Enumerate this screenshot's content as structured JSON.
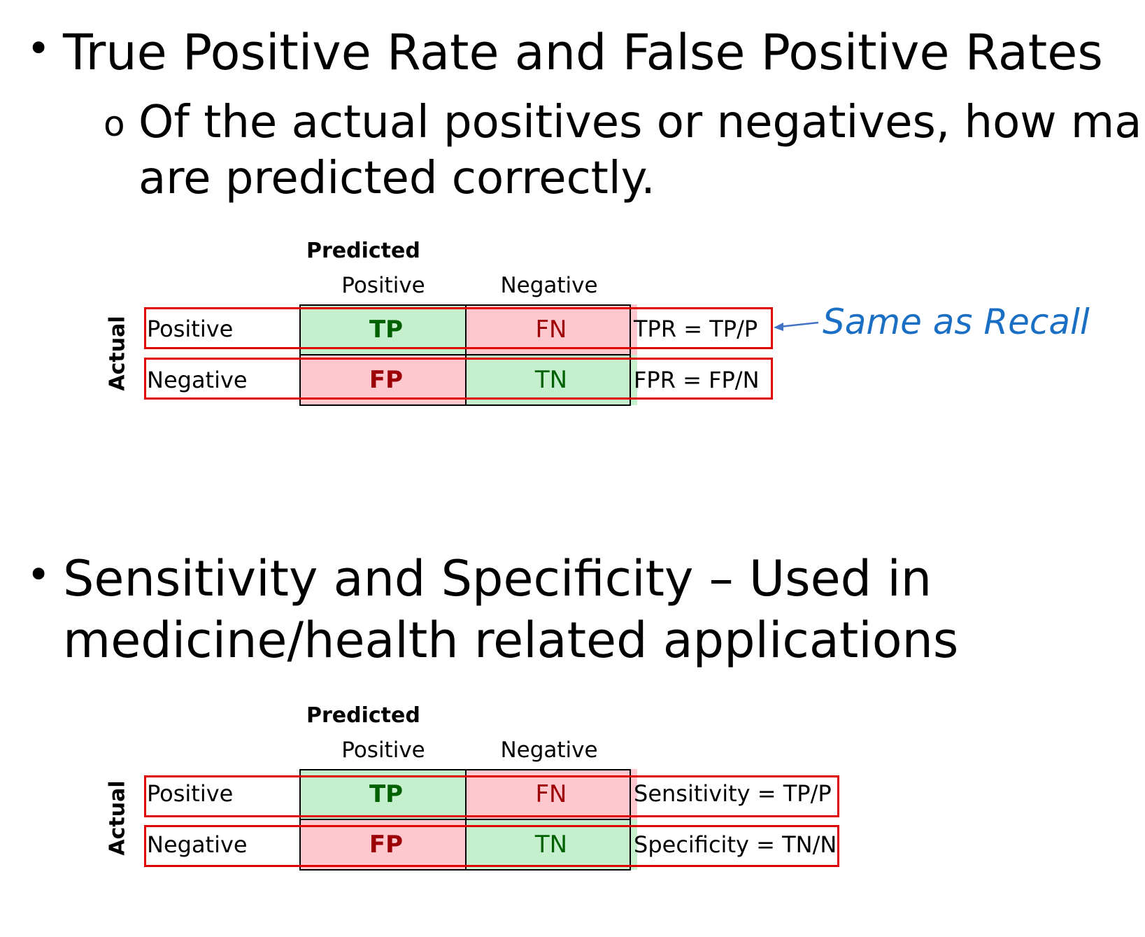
{
  "bullets": [
    {
      "text": "True Positive Rate and False Positive Rates"
    },
    {
      "text_line1": "Sensitivity and Specificity – Used in",
      "text_line2": "medicine/health related applications"
    }
  ],
  "bullet_marker": "•",
  "sub_bullet": {
    "marker": "o",
    "line1": "Of the actual positives or negatives, how many",
    "line2": "are predicted correctly."
  },
  "matrices": [
    {
      "title": "Predicted",
      "col_headers": [
        "Positive",
        "Negative"
      ],
      "row_axis_label": "Actual",
      "row_labels": [
        "Positive",
        "Negative"
      ],
      "cells": [
        [
          "TP",
          "FN"
        ],
        [
          "FP",
          "TN"
        ]
      ],
      "formulas": [
        "TPR = TP/P",
        "FPR = FP/N"
      ],
      "annotation": "Same as Recall"
    },
    {
      "title": "Predicted",
      "col_headers": [
        "Positive",
        "Negative"
      ],
      "row_axis_label": "Actual",
      "row_labels": [
        "Positive",
        "Negative"
      ],
      "cells": [
        [
          "TP",
          "FN"
        ],
        [
          "FP",
          "TN"
        ]
      ],
      "formulas": [
        "Sensitivity = TP/P",
        "Specificity = TN/N"
      ]
    }
  ],
  "colors": {
    "cell_green": "#c6efce",
    "cell_red": "#ffc7ce",
    "text_green": "#006100",
    "text_red": "#9c0006",
    "row_outline": "#e00000",
    "annotation": "#1a6fc4"
  }
}
